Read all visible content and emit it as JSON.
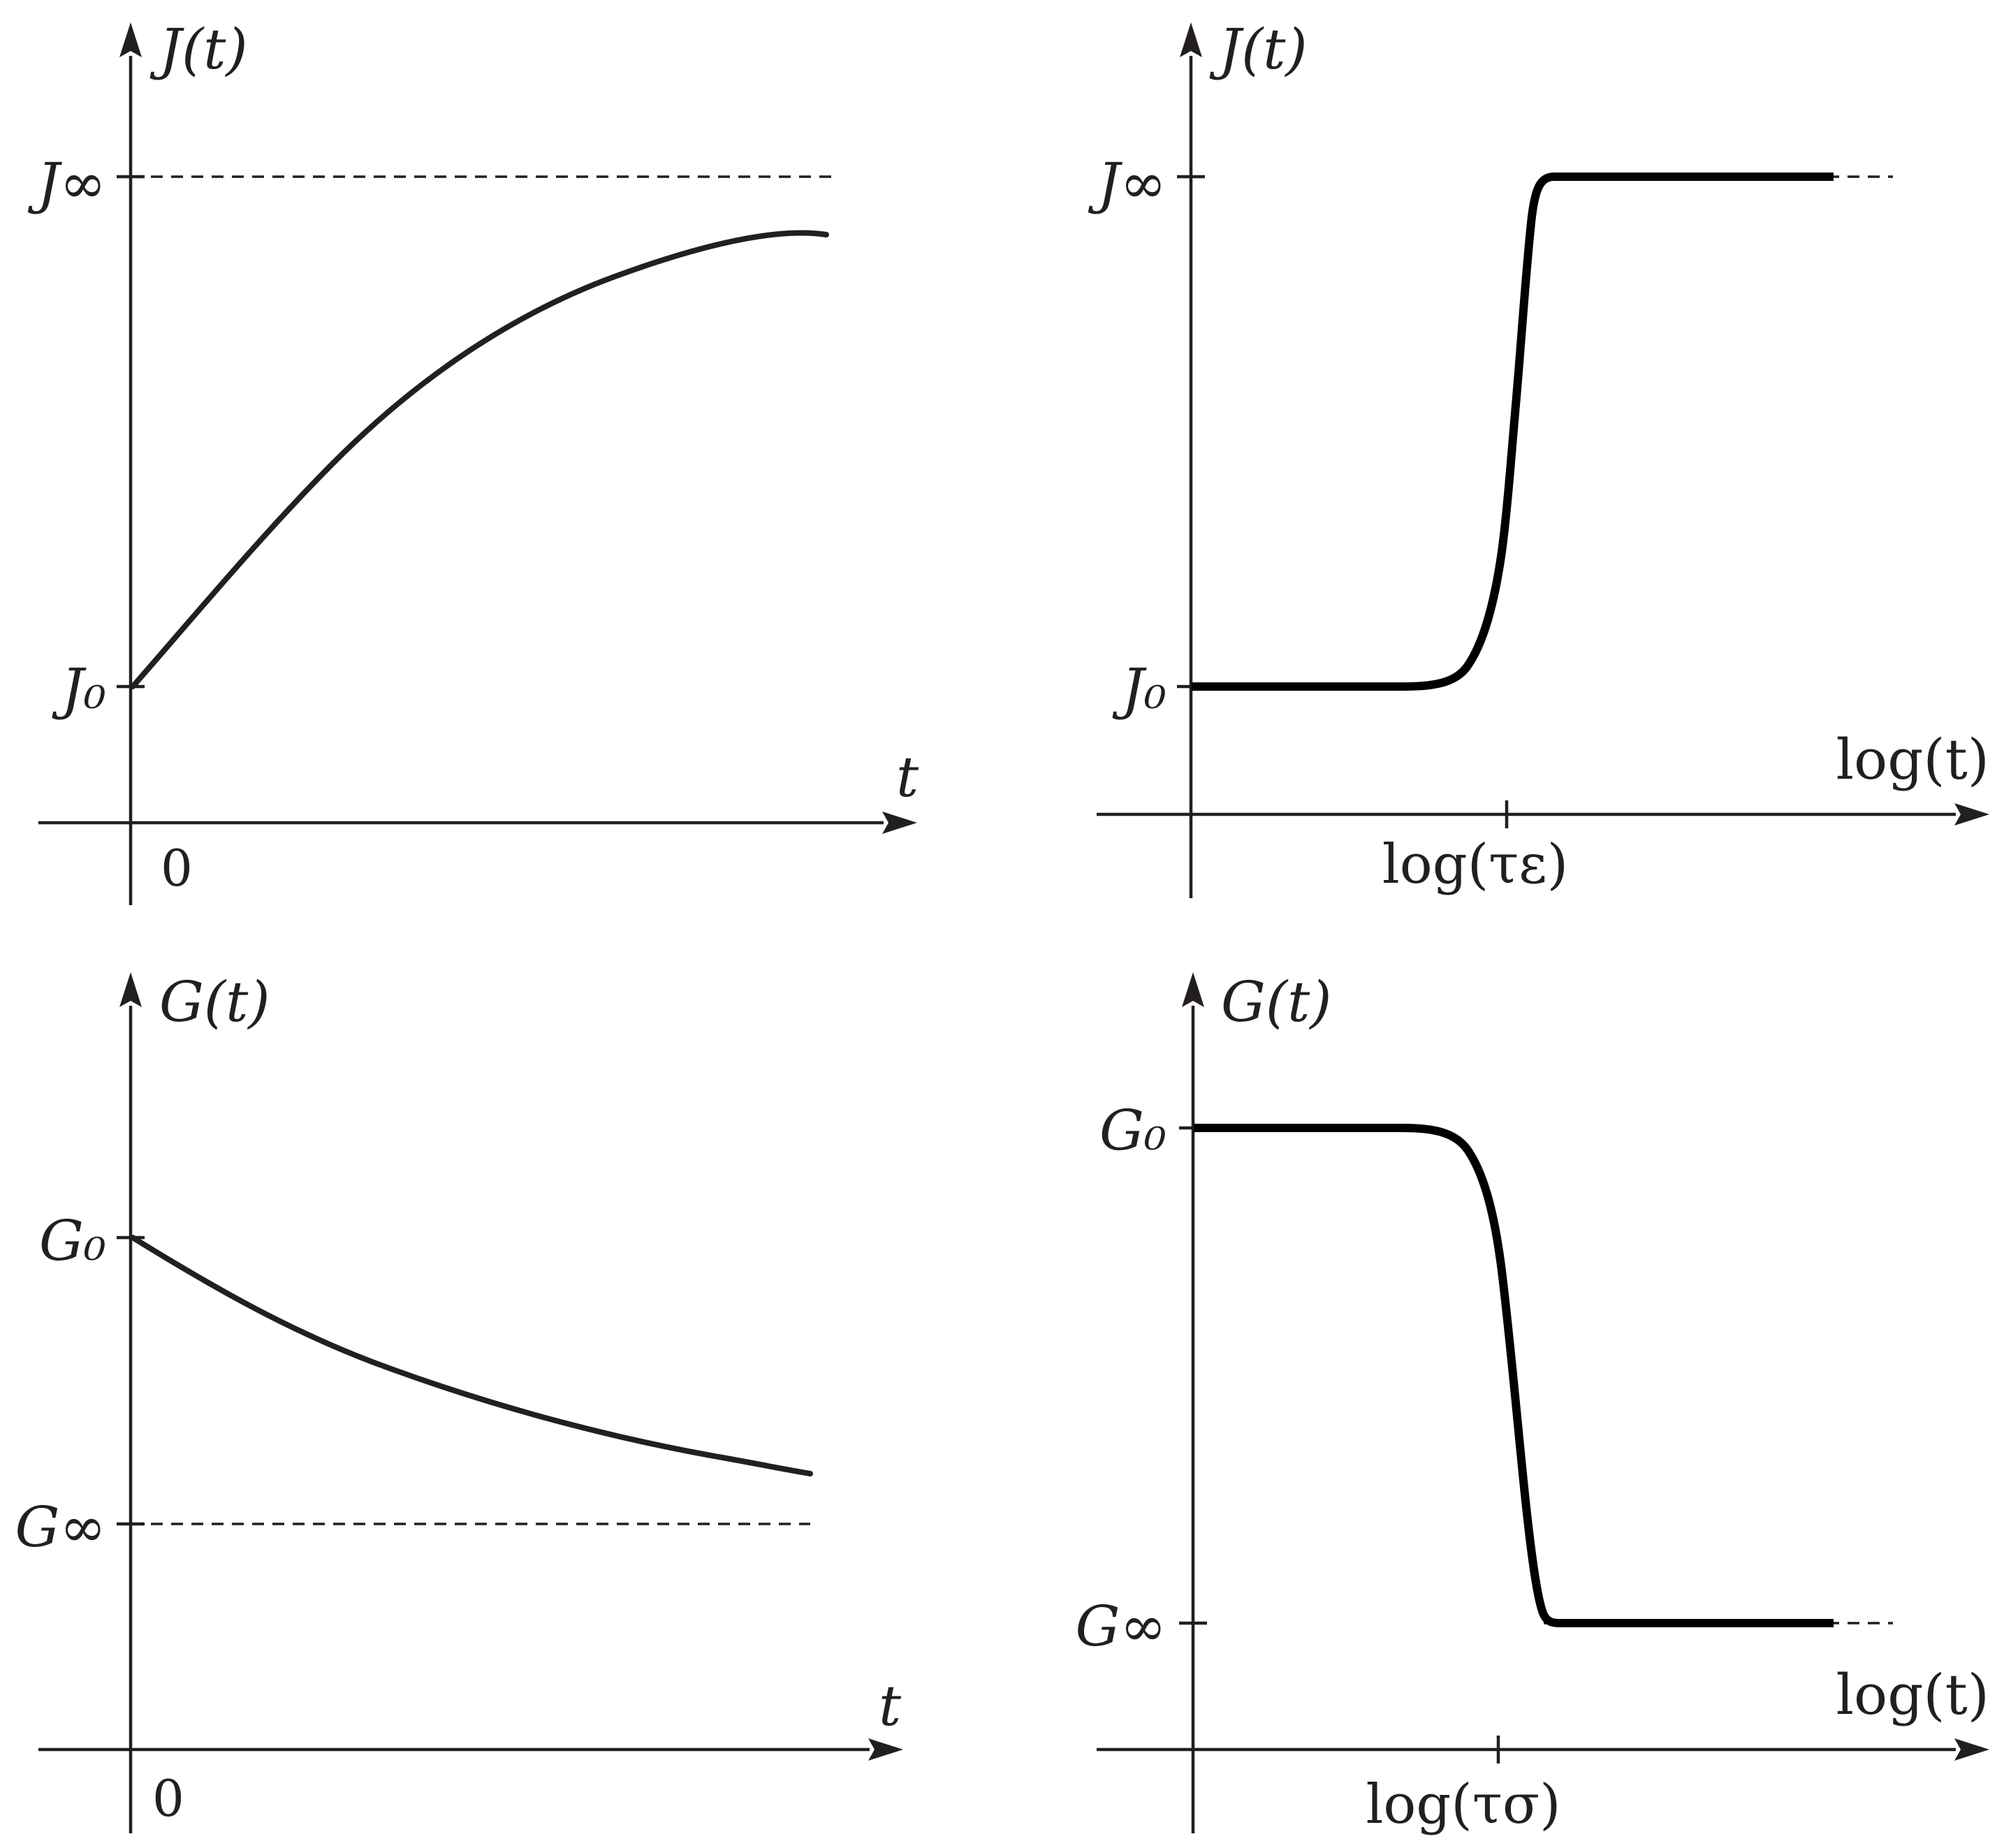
{
  "chart_data": [
    {
      "type": "line",
      "panel": "top-left",
      "y_axis_label": "J(t)",
      "x_axis_label": "t",
      "origin_label": "0",
      "y_ticks": [
        {
          "label": "J₀",
          "y": 0
        },
        {
          "label": "J∞",
          "y": 1
        }
      ],
      "asymptote": {
        "label": "J∞",
        "y": 1,
        "style": "dashed"
      },
      "series": [
        {
          "shape": "exponential rise from J0 toward J∞",
          "x": [
            0,
            0.5,
            1,
            1.5,
            2,
            2.5,
            3,
            3.5,
            4
          ],
          "y": [
            0,
            0.33,
            0.57,
            0.73,
            0.83,
            0.9,
            0.94,
            0.97,
            0.89
          ]
        }
      ],
      "xlim": [
        0,
        4.3
      ],
      "ylim": [
        -0.27,
        1.27
      ]
    },
    {
      "type": "line",
      "panel": "top-right",
      "y_axis_label": "J(t)",
      "x_axis_label": "log(t)",
      "x_ticks": [
        {
          "label": "log(τε)",
          "x": 0
        }
      ],
      "y_ticks": [
        {
          "label": "J₀",
          "y": 0
        },
        {
          "label": "J∞",
          "y": 1
        }
      ],
      "asymptote": {
        "label": "J∞",
        "y": 1,
        "style": "dashed"
      },
      "series": [
        {
          "shape": "sigmoid step up at log(τε)",
          "x": [
            -4,
            -2,
            -1,
            -0.5,
            0,
            0.3,
            0.5,
            1,
            2,
            4
          ],
          "y": [
            0,
            0,
            0.02,
            0.15,
            0.55,
            0.9,
            1,
            1,
            1,
            1
          ]
        }
      ],
      "xlim": [
        -4.2,
        4.8
      ],
      "ylim": [
        -0.27,
        1.25
      ]
    },
    {
      "type": "line",
      "panel": "bottom-left",
      "y_axis_label": "G(t)",
      "x_axis_label": "t",
      "origin_label": "0",
      "y_ticks": [
        {
          "label": "G₀",
          "y": 1
        },
        {
          "label": "G∞",
          "y": 0
        }
      ],
      "asymptote": {
        "label": "G∞",
        "y": 0,
        "style": "dashed"
      },
      "series": [
        {
          "shape": "exponential decay from G0 toward G∞",
          "x": [
            0,
            0.5,
            1,
            1.5,
            2,
            2.5,
            3,
            3.5,
            4
          ],
          "y": [
            1,
            0.77,
            0.6,
            0.47,
            0.37,
            0.29,
            0.23,
            0.19,
            0.17
          ]
        }
      ],
      "xlim": [
        0,
        4.4
      ],
      "ylim": [
        -0.8,
        1.65
      ]
    },
    {
      "type": "line",
      "panel": "bottom-right",
      "y_axis_label": "G(t)",
      "x_axis_label": "log(t)",
      "x_ticks": [
        {
          "label": "log(τσ)",
          "x": 0
        }
      ],
      "y_ticks": [
        {
          "label": "G₀",
          "y": 1
        },
        {
          "label": "G∞",
          "y": 0
        }
      ],
      "asymptote": {
        "label": "G∞",
        "y": 0,
        "style": "dashed"
      },
      "series": [
        {
          "shape": "sigmoid step down at log(τσ)",
          "x": [
            -4,
            -2,
            -1,
            -0.5,
            0,
            0.3,
            0.5,
            1,
            2,
            4
          ],
          "y": [
            1,
            1,
            0.98,
            0.85,
            0.45,
            0.1,
            0,
            0,
            0,
            0
          ]
        }
      ],
      "xlim": [
        -4.2,
        4.8
      ],
      "ylim": [
        -0.27,
        1.25
      ]
    }
  ]
}
